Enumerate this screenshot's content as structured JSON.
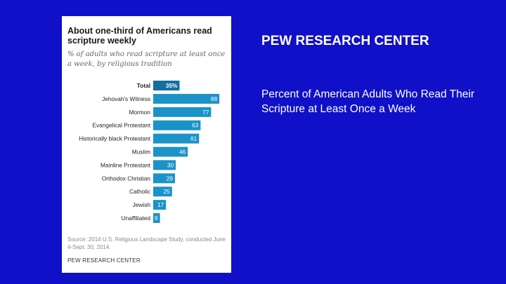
{
  "slide": {
    "heading": "PEW RESEARCH CENTER",
    "caption": "Percent of American Adults Who Read Their Scripture at Least Once a Week"
  },
  "card": {
    "source": "Source: 2014 U.S. Religious Landscape Study, conducted June 4-Sept. 30, 2014.",
    "footer": "PEW RESEARCH CENTER"
  },
  "chart_data": {
    "type": "bar",
    "orientation": "horizontal",
    "title": "About one-third of Americans read scripture weekly",
    "subtitle": "% of adults who read scripture at least once a week, by religious tradition",
    "categories": [
      "Total",
      "Jehovah's Witness",
      "Mormon",
      "Evangelical Protestant",
      "Historically black Protestant",
      "Muslim",
      "Mainline Protestant",
      "Orthodox Christian",
      "Catholic",
      "Jewish",
      "Unaffiliated"
    ],
    "values": [
      35,
      88,
      77,
      63,
      61,
      46,
      30,
      29,
      25,
      17,
      9
    ],
    "value_labels": [
      "35%",
      "88",
      "77",
      "63",
      "61",
      "46",
      "30",
      "29",
      "25",
      "17",
      "9"
    ],
    "xlim": [
      0,
      100
    ],
    "grid": false,
    "highlight_category": "Total",
    "colors": {
      "bar": "#1b93c9",
      "highlight": "#136f9e",
      "label_text": "#ffffff"
    }
  }
}
